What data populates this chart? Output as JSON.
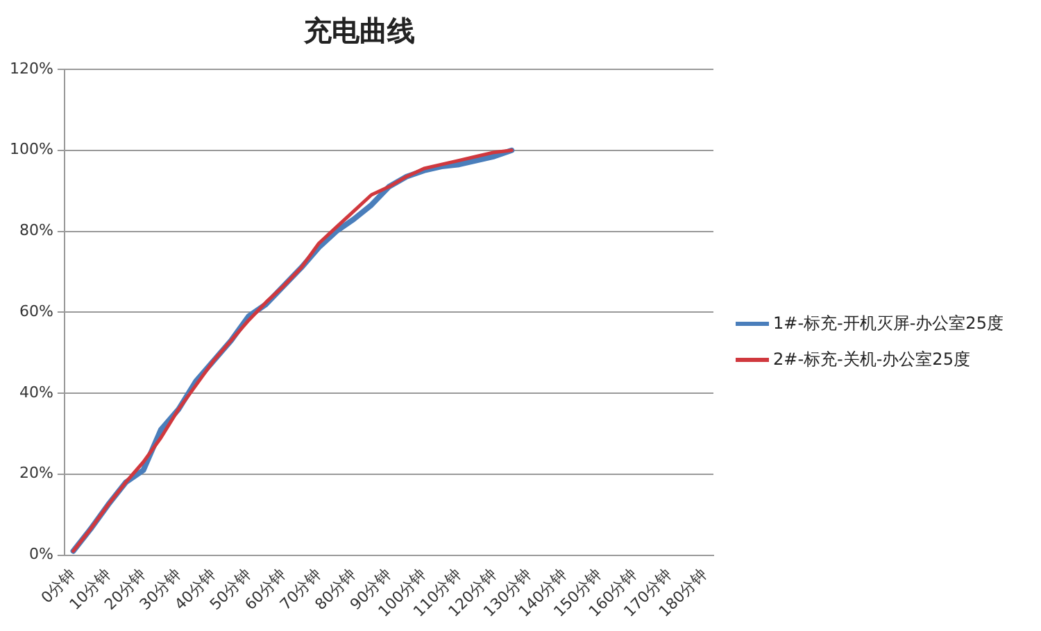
{
  "chart_data": {
    "type": "line",
    "title": "充电曲线",
    "categories": [
      "0分钟",
      null,
      "10分钟",
      null,
      "20分钟",
      null,
      "30分钟",
      null,
      "40分钟",
      null,
      "50分钟",
      null,
      "60分钟",
      null,
      "70分钟",
      null,
      "80分钟",
      null,
      "90分钟",
      null,
      "100分钟",
      null,
      "110分钟",
      null,
      "120分钟",
      null,
      "130分钟",
      null,
      "140分钟",
      null,
      "150分钟",
      null,
      "160分钟",
      null,
      "170分钟",
      null,
      "180分钟"
    ],
    "series": [
      {
        "name": "1#-标充-开机灭屏-办公室25度",
        "color": "#4a7ebb",
        "values": [
          1,
          6.5,
          12.5,
          18,
          21,
          31,
          36,
          43,
          48,
          53,
          59,
          62,
          66.5,
          71,
          76,
          80,
          83,
          86.5,
          91,
          93.5,
          95,
          96,
          96.5,
          97.5,
          98.5,
          100,
          null,
          null,
          null,
          null,
          null,
          null,
          null,
          null,
          null,
          null,
          null
        ]
      },
      {
        "name": "2#-标充-关机-办公室25度",
        "color": "#d0383e",
        "values": [
          1,
          6.5,
          12.5,
          18,
          23,
          29,
          36,
          42,
          48,
          53,
          58,
          62.5,
          66.5,
          71,
          77,
          81,
          85,
          89,
          91,
          93.5,
          95.5,
          96.5,
          97.5,
          98.5,
          99.5,
          100,
          null,
          null,
          null,
          null,
          null,
          null,
          null,
          null,
          null,
          null,
          null
        ]
      }
    ],
    "ylim": [
      0,
      120
    ],
    "yticks": [
      {
        "value": 0,
        "label": "0%"
      },
      {
        "value": 20,
        "label": "20%"
      },
      {
        "value": 40,
        "label": "40%"
      },
      {
        "value": 60,
        "label": "60%"
      },
      {
        "value": 80,
        "label": "80%"
      },
      {
        "value": 100,
        "label": "100%"
      },
      {
        "value": 120,
        "label": "120%"
      }
    ],
    "grid": "y",
    "legend": "right",
    "marker": "none"
  }
}
